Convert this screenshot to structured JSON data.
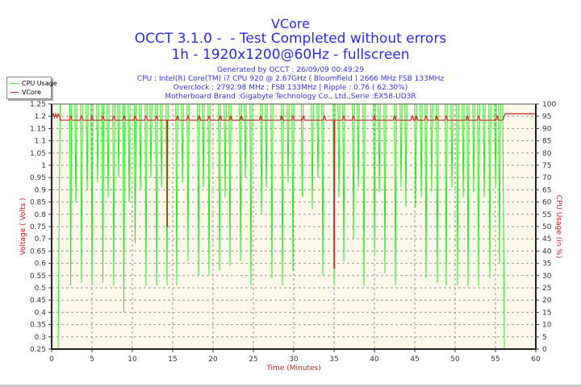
{
  "header": {
    "title": "VCore",
    "subtitle": "OCCT 3.1.0 -  - Test Completed without errors",
    "mode": "1h - 1920x1200@60Hz - fullscreen",
    "info": [
      "Generated by OCCT : 26/09/09 00:49:29",
      "CPU : Intel(R) Core(TM) i7 CPU 920 @ 2.67GHz ( Bloomfield ) 2666 MHz FSB 133MHz",
      "Overclock : 2792.98 MHz ; FSB 133MHz | Ripple : 0.76 ( 62.30%)",
      "Motherboard Brand :Gigabyte Technology Co., Ltd.,Serie :EX58-UD3R"
    ]
  },
  "chart_data": {
    "type": "line",
    "xlabel": "Time (Minutes)",
    "ylabel": "Voltage ( Volts )",
    "y2label": "CPU Usage (in %)",
    "xlim": [
      0,
      60
    ],
    "ylim": [
      0.25,
      1.25
    ],
    "y2lim": [
      0,
      100
    ],
    "xticks": [
      "0",
      "5",
      "10",
      "15",
      "20",
      "25",
      "30",
      "35",
      "40",
      "45",
      "50",
      "55",
      "60"
    ],
    "yticks": [
      "0.25",
      "0.3",
      "0.35",
      "0.4",
      "0.45",
      "0.5",
      "0.55",
      "0.6",
      "0.65",
      "0.7",
      "0.75",
      "0.8",
      "0.85",
      "0.9",
      "0.95",
      "1",
      "1.05",
      "1.1",
      "1.15",
      "1.2",
      "1.25"
    ],
    "y2ticks": [
      "0",
      "5",
      "10",
      "15",
      "20",
      "25",
      "30",
      "35",
      "40",
      "45",
      "50",
      "55",
      "60",
      "65",
      "70",
      "75",
      "80",
      "85",
      "90",
      "95",
      "100"
    ],
    "grid": true,
    "legend_position": "top-left",
    "background": "#fdf8ea",
    "series": [
      {
        "name": "CPU Usage",
        "axis": "right",
        "color": "#22ee22",
        "start": [
          [
            0,
            0
          ],
          [
            0.8,
            0
          ],
          [
            1.05,
            100
          ]
        ],
        "dips": [
          [
            2.36,
            26
          ],
          [
            3.0,
            60
          ],
          [
            3.7,
            27
          ],
          [
            4.4,
            65
          ],
          [
            5.0,
            26
          ],
          [
            5.7,
            68
          ],
          [
            6.35,
            27
          ],
          [
            7.0,
            62
          ],
          [
            7.7,
            26
          ],
          [
            8.3,
            70
          ],
          [
            8.95,
            15
          ],
          [
            9.6,
            60
          ],
          [
            10.35,
            43
          ],
          [
            11.0,
            65
          ],
          [
            11.7,
            26
          ],
          [
            12.3,
            70
          ],
          [
            13.0,
            26
          ],
          [
            13.6,
            66
          ],
          [
            14.3,
            26
          ],
          [
            15.5,
            26
          ],
          [
            16.2,
            68
          ],
          [
            16.9,
            36
          ],
          [
            18.2,
            30
          ],
          [
            18.8,
            66
          ],
          [
            19.5,
            30
          ],
          [
            20.8,
            32
          ],
          [
            21.5,
            62
          ],
          [
            22.1,
            34
          ],
          [
            23.4,
            36
          ],
          [
            24.0,
            70
          ],
          [
            24.7,
            26
          ],
          [
            26.0,
            55
          ],
          [
            26.6,
            66
          ],
          [
            27.3,
            29
          ],
          [
            28.6,
            26
          ],
          [
            29.3,
            68
          ],
          [
            29.9,
            32
          ],
          [
            31.05,
            62
          ],
          [
            32.3,
            57
          ],
          [
            33.0,
            70
          ],
          [
            33.6,
            30
          ],
          [
            35.0,
            26
          ],
          [
            35.6,
            62
          ],
          [
            36.2,
            36
          ],
          [
            37.4,
            45
          ],
          [
            38.0,
            66
          ],
          [
            38.7,
            26
          ],
          [
            40.0,
            38
          ],
          [
            40.6,
            64
          ],
          [
            41.3,
            31
          ],
          [
            42.6,
            26
          ],
          [
            43.3,
            66
          ],
          [
            43.9,
            58
          ],
          [
            45.1,
            58
          ],
          [
            45.8,
            62
          ],
          [
            46.4,
            29
          ],
          [
            47.1,
            64
          ],
          [
            47.8,
            27
          ],
          [
            48.9,
            26
          ],
          [
            49.6,
            66
          ],
          [
            50.3,
            26
          ],
          [
            51.0,
            62
          ],
          [
            51.6,
            26
          ],
          [
            52.3,
            64
          ],
          [
            52.9,
            26
          ],
          [
            53.6,
            62
          ],
          [
            54.3,
            29
          ],
          [
            55.0,
            66
          ],
          [
            55.5,
            35
          ]
        ],
        "end": [
          [
            55.9,
            100
          ],
          [
            56.1,
            0
          ],
          [
            60,
            0
          ]
        ]
      },
      {
        "name": "VCore",
        "axis": "left",
        "color": "#cc2222",
        "baseline": 1.184,
        "start": [
          [
            0,
            1.2
          ],
          [
            0.2,
            1.21
          ],
          [
            0.35,
            1.195
          ],
          [
            0.5,
            1.21
          ],
          [
            0.65,
            1.195
          ],
          [
            0.8,
            1.21
          ],
          [
            1.0,
            1.2
          ],
          [
            1.05,
            1.184
          ]
        ],
        "bumps": [
          2.36,
          3.7,
          5.0,
          6.35,
          7.7,
          9.0,
          10.35,
          11.7,
          13.0,
          15.6,
          16.9,
          18.3,
          19.5,
          20.9,
          22.2,
          23.5,
          25.9,
          28.5,
          29.9,
          31.2,
          33.8,
          36.2,
          37.4,
          40.0,
          42.5,
          44.7,
          45.2,
          46.4,
          47.7,
          48.9,
          51.5,
          52.9,
          55.2
        ],
        "drops": [
          [
            14.3,
            0.75
          ],
          [
            35.0,
            0.58
          ]
        ],
        "end": [
          [
            55.9,
            1.184
          ],
          [
            56.2,
            1.21
          ],
          [
            60,
            1.21
          ]
        ]
      }
    ]
  }
}
